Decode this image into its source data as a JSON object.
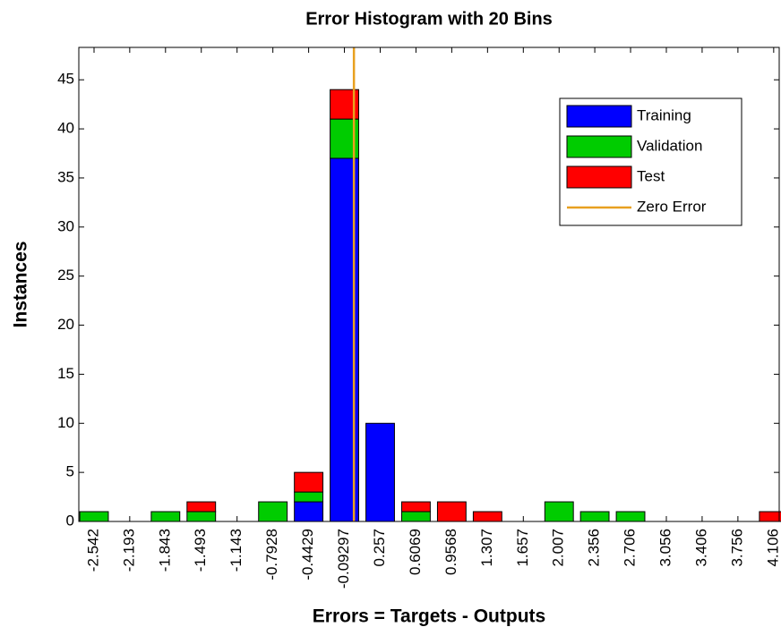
{
  "chart_data": {
    "type": "bar",
    "title": "Error Histogram with 20 Bins",
    "x_label": "Errors = Targets - Outputs",
    "y_label": "Instances",
    "x": [
      -2.542,
      -2.193,
      -1.843,
      -1.493,
      -1.143,
      -0.7928,
      -0.4429,
      -0.09297,
      0.257,
      0.6069,
      0.9568,
      1.307,
      1.657,
      2.007,
      2.356,
      2.706,
      3.056,
      3.406,
      3.756,
      4.106
    ],
    "series": [
      {
        "name": "Training",
        "color": "#0000ff",
        "values": [
          0,
          0,
          0,
          0,
          0,
          0,
          2,
          37,
          10,
          0,
          0,
          0,
          0,
          0,
          0,
          0,
          0,
          0,
          0,
          0
        ]
      },
      {
        "name": "Validation",
        "color": "#00cc00",
        "values": [
          1,
          0,
          1,
          1,
          0,
          2,
          1,
          4,
          0,
          1,
          0,
          0,
          0,
          2,
          1,
          1,
          0,
          0,
          0,
          0
        ]
      },
      {
        "name": "Test",
        "color": "#ff0000",
        "values": [
          0,
          0,
          0,
          1,
          0,
          0,
          2,
          3,
          0,
          1,
          2,
          1,
          0,
          0,
          0,
          0,
          0,
          0,
          0,
          1
        ]
      }
    ],
    "zero_error": {
      "name": "Zero Error",
      "color": "#e8a020",
      "x": 0
    },
    "stacked": true,
    "xlim": [
      -2.691,
      4.16
    ],
    "xticks": [
      -2.542,
      -2.193,
      -1.843,
      -1.493,
      -1.143,
      -0.7928,
      -0.4429,
      -0.09297,
      0.257,
      0.6069,
      0.9568,
      1.307,
      1.657,
      2.007,
      2.356,
      2.706,
      3.056,
      3.406,
      3.756,
      4.106
    ],
    "ylim": [
      0,
      48.3
    ],
    "yticks": [
      0,
      5,
      10,
      15,
      20,
      25,
      30,
      35,
      40,
      45
    ],
    "legend": "upper right"
  }
}
